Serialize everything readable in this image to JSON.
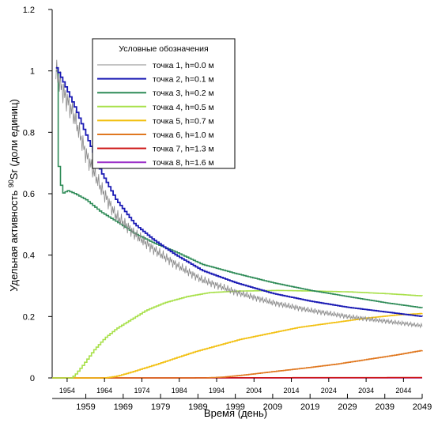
{
  "chart_data": {
    "type": "line",
    "xlabel": "Время (день)",
    "ylabel_prefix": "Удельная активность ",
    "ylabel_sup": "90",
    "ylabel_suffix": "Sr (доли единиц)",
    "xlim": [
      1950,
      2049
    ],
    "ylim": [
      0,
      1.2
    ],
    "y_ticks": [
      0,
      0.2,
      0.4,
      0.6,
      0.8,
      1,
      1.2
    ],
    "y_tick_labels": [
      "0",
      "0.2",
      "0.4",
      "0.6",
      "0.8",
      "1",
      "1.2"
    ],
    "x_minor_ticks": [
      1954,
      1964,
      1974,
      1984,
      1994,
      2004,
      2014,
      2024,
      2034,
      2044
    ],
    "x_major_ticks": [
      1959,
      1969,
      1979,
      1989,
      1999,
      2009,
      2019,
      2029,
      2039,
      2049
    ],
    "legend": {
      "title": "Условные обозначения",
      "placement": "top-center"
    },
    "series": [
      {
        "name": "точка 1, h=0.0 м",
        "color": "#8a8a8a",
        "style": "noisy",
        "x": [
          1951,
          1953,
          1956,
          1959,
          1963,
          1967,
          1972,
          1977,
          1983,
          1990,
          1999,
          2009,
          2019,
          2029,
          2039,
          2049
        ],
        "y": [
          1.0,
          0.93,
          0.85,
          0.73,
          0.62,
          0.53,
          0.47,
          0.42,
          0.37,
          0.32,
          0.28,
          0.245,
          0.22,
          0.2,
          0.185,
          0.17
        ]
      },
      {
        "name": "точка 2, h=0.1 м",
        "color": "#1a1ab4",
        "style": "step",
        "x": [
          1951,
          1953,
          1956,
          1959,
          1963,
          1967,
          1972,
          1977,
          1983,
          1990,
          1999,
          2009,
          2019,
          2029,
          2039,
          2049
        ],
        "y": [
          1.01,
          0.96,
          0.88,
          0.79,
          0.67,
          0.58,
          0.5,
          0.45,
          0.4,
          0.35,
          0.31,
          0.275,
          0.25,
          0.23,
          0.215,
          0.2
        ]
      },
      {
        "name": "точка 3, h=0.2 м",
        "color": "#2e8b57",
        "style": "step",
        "x": [
          1951,
          1951.5,
          1952.5,
          1954,
          1956,
          1959,
          1963,
          1967,
          1972,
          1977,
          1983,
          1990,
          1999,
          2009,
          2019,
          2029,
          2039,
          2049
        ],
        "y": [
          1.0,
          0.7,
          0.6,
          0.61,
          0.6,
          0.58,
          0.54,
          0.51,
          0.47,
          0.44,
          0.41,
          0.37,
          0.34,
          0.31,
          0.285,
          0.265,
          0.245,
          0.228
        ]
      },
      {
        "name": "точка 4, h=0.5 м",
        "color": "#a8e04a",
        "style": "step",
        "x": [
          1950,
          1955,
          1956,
          1958,
          1961,
          1964,
          1967,
          1971,
          1975,
          1980,
          1986,
          1992,
          2000,
          2010,
          2020,
          2030,
          2040,
          2049
        ],
        "y": [
          0,
          0,
          0.01,
          0.04,
          0.09,
          0.13,
          0.16,
          0.19,
          0.22,
          0.245,
          0.265,
          0.278,
          0.283,
          0.285,
          0.283,
          0.28,
          0.274,
          0.267
        ]
      },
      {
        "name": "точка 5, h=0.7 м",
        "color": "#f2c012",
        "style": "step",
        "x": [
          1950,
          1964,
          1967,
          1970,
          1974,
          1978,
          1983,
          1988,
          1994,
          2000,
          2008,
          2016,
          2025,
          2034,
          2042,
          2049
        ],
        "y": [
          0,
          0,
          0.005,
          0.015,
          0.03,
          0.045,
          0.065,
          0.085,
          0.105,
          0.125,
          0.145,
          0.165,
          0.18,
          0.195,
          0.205,
          0.21
        ]
      },
      {
        "name": "точка 6, h=1.0 м",
        "color": "#e07820",
        "style": "step",
        "x": [
          1950,
          1991,
          1996,
          2003,
          2010,
          2018,
          2026,
          2034,
          2042,
          2049
        ],
        "y": [
          0,
          0,
          0.003,
          0.012,
          0.022,
          0.033,
          0.045,
          0.06,
          0.075,
          0.09
        ]
      },
      {
        "name": "точка 7, h=1.3 м",
        "color": "#cc1010",
        "style": "step",
        "x": [
          1950,
          2049
        ],
        "y": [
          0,
          0.001
        ]
      },
      {
        "name": "точка 8, h=1.6 м",
        "color": "#9b30c8",
        "style": "step",
        "x": [
          1950,
          2049
        ],
        "y": [
          0,
          0
        ]
      }
    ]
  }
}
